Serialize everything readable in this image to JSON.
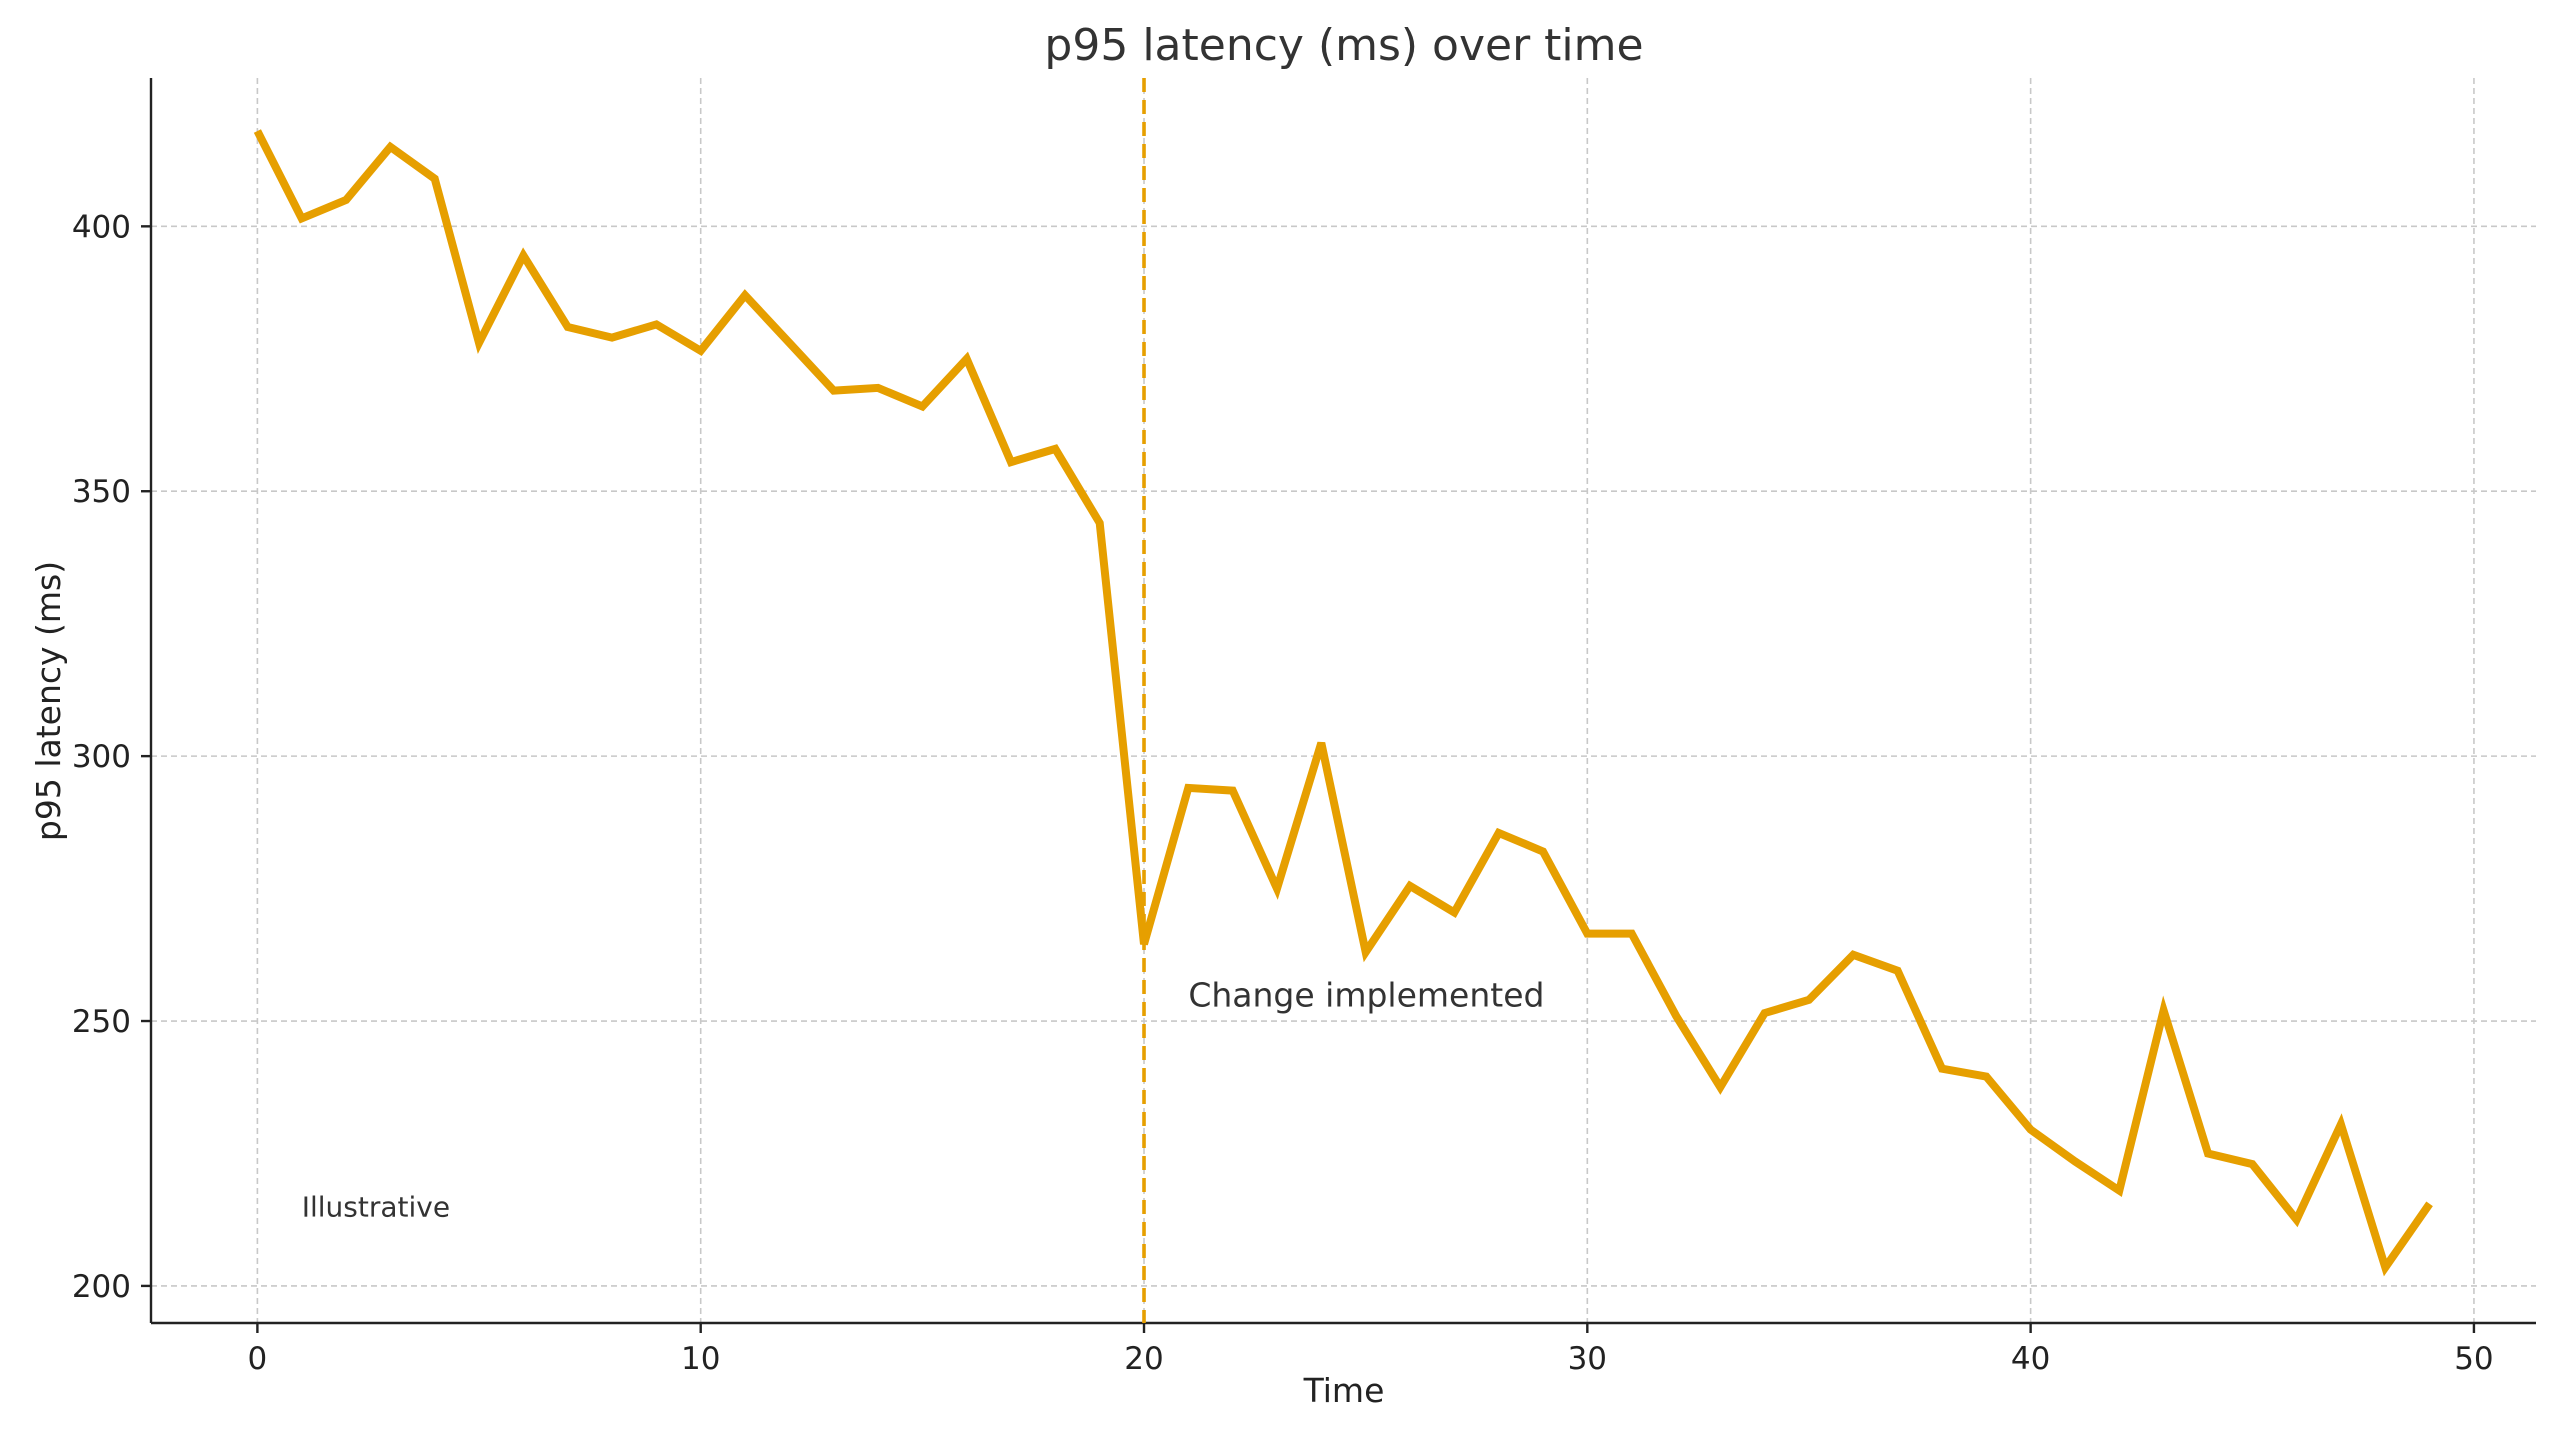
{
  "chart_data": {
    "type": "line",
    "title": "p95 latency (ms) over time",
    "xlabel": "Time",
    "ylabel": "p95 latency (ms)",
    "xlim": [
      -2.4,
      51.4
    ],
    "ylim": [
      193,
      428
    ],
    "x_ticks": [
      0,
      10,
      20,
      30,
      40,
      50
    ],
    "y_ticks": [
      200,
      250,
      300,
      350,
      400
    ],
    "x_tick_labels": [
      "0",
      "10",
      "20",
      "30",
      "40",
      "50"
    ],
    "y_tick_labels": [
      "200",
      "250",
      "300",
      "350",
      "400"
    ],
    "grid": true,
    "series_color": "#E69F00",
    "series": [
      {
        "x": [
          0,
          1,
          2,
          3,
          4,
          5,
          6,
          7,
          8,
          9,
          10,
          11,
          12,
          13,
          14,
          15,
          16,
          17,
          18,
          19,
          20,
          21,
          22,
          23,
          24,
          25,
          26,
          27,
          28,
          29,
          30,
          31,
          32,
          33,
          34,
          35,
          36,
          37,
          38,
          39,
          40,
          41,
          42,
          43,
          44,
          45,
          46,
          47,
          48,
          49
        ],
        "values": [
          418,
          401.5,
          405,
          415,
          409,
          378,
          394.5,
          381,
          379,
          381.5,
          376.5,
          387,
          378,
          369,
          369.5,
          366,
          375,
          355.5,
          358,
          344,
          264.5,
          294,
          293.5,
          275,
          302.5,
          263,
          275.5,
          270.5,
          285.5,
          282,
          266.5,
          266.5,
          251,
          237.5,
          251.5,
          254,
          262.5,
          259.5,
          241,
          239.5,
          229.5,
          223.5,
          218,
          252,
          225,
          223,
          212.5,
          230.5,
          203.5,
          215.5
        ]
      }
    ],
    "event": {
      "x": 20,
      "label": "Change implemented",
      "label_x": 21,
      "label_y": 255
    },
    "note": {
      "text": "Illustrative",
      "x": 1,
      "y": 215
    }
  }
}
